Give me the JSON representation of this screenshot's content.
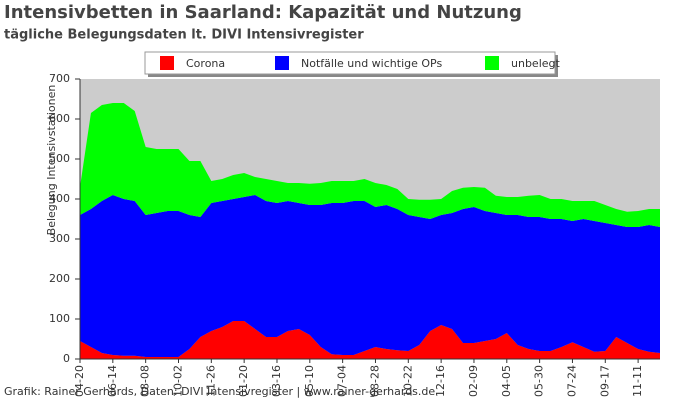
{
  "chart_data": {
    "type": "stacked_area",
    "title": "Intensivbetten in Saarland: Kapazität und Nutzung",
    "subtitle": "tägliche Belegungsdaten lt. DIVI Intensivregister",
    "y_label": "Belegung Intensivstationen",
    "footer": "Grafik: Rainer Gerhards, Daten: DIVI Intensivregister | www.rainer-gerhards.de",
    "categories": [
      "04-20",
      null,
      null,
      "06-14",
      null,
      null,
      "08-08",
      null,
      null,
      "10-02",
      null,
      null,
      "11-26",
      null,
      null,
      "01-20",
      null,
      null,
      "03-16",
      null,
      null,
      "05-10",
      null,
      null,
      "07-04",
      null,
      null,
      "08-28",
      null,
      null,
      "10-22",
      null,
      null,
      "12-16",
      null,
      null,
      "02-09",
      null,
      null,
      "04-05",
      null,
      null,
      "05-30",
      null,
      null,
      "07-24",
      null,
      null,
      "09-17",
      null,
      null,
      "11-11",
      null,
      null
    ],
    "series": [
      {
        "name": "Corona",
        "color": "#ff0000",
        "values": [
          45,
          30,
          15,
          10,
          8,
          8,
          5,
          5,
          5,
          5,
          25,
          55,
          70,
          80,
          95,
          95,
          75,
          55,
          55,
          70,
          75,
          60,
          30,
          12,
          10,
          10,
          20,
          30,
          25,
          22,
          20,
          35,
          70,
          85,
          75,
          40,
          40,
          45,
          50,
          65,
          35,
          25,
          20,
          20,
          30,
          42,
          30,
          18,
          20,
          55,
          40,
          25,
          18,
          15
        ]
      },
      {
        "name": "Notfälle und wichtige OPs",
        "color": "#0000ff",
        "values": [
          315,
          345,
          380,
          400,
          392,
          387,
          355,
          360,
          365,
          365,
          335,
          300,
          320,
          315,
          305,
          310,
          335,
          340,
          335,
          325,
          315,
          325,
          355,
          378,
          380,
          385,
          375,
          350,
          360,
          353,
          340,
          320,
          280,
          275,
          290,
          335,
          340,
          325,
          315,
          295,
          325,
          330,
          335,
          330,
          320,
          303,
          320,
          327,
          320,
          280,
          290,
          305,
          317,
          315
        ]
      },
      {
        "name": "unbelegt",
        "color": "#00ff00",
        "values": [
          70,
          240,
          240,
          230,
          240,
          225,
          170,
          160,
          155,
          155,
          135,
          140,
          55,
          55,
          60,
          60,
          45,
          55,
          55,
          45,
          50,
          53,
          55,
          55,
          55,
          50,
          55,
          60,
          50,
          50,
          40,
          43,
          48,
          40,
          55,
          53,
          50,
          58,
          43,
          45,
          45,
          53,
          55,
          50,
          50,
          50,
          45,
          50,
          45,
          40,
          38,
          40,
          40,
          45
        ]
      }
    ],
    "ylim": [
      0,
      700
    ],
    "yticks": [
      0,
      100,
      200,
      300,
      400,
      500,
      600,
      700
    ],
    "plot_background": "#cccccc"
  }
}
